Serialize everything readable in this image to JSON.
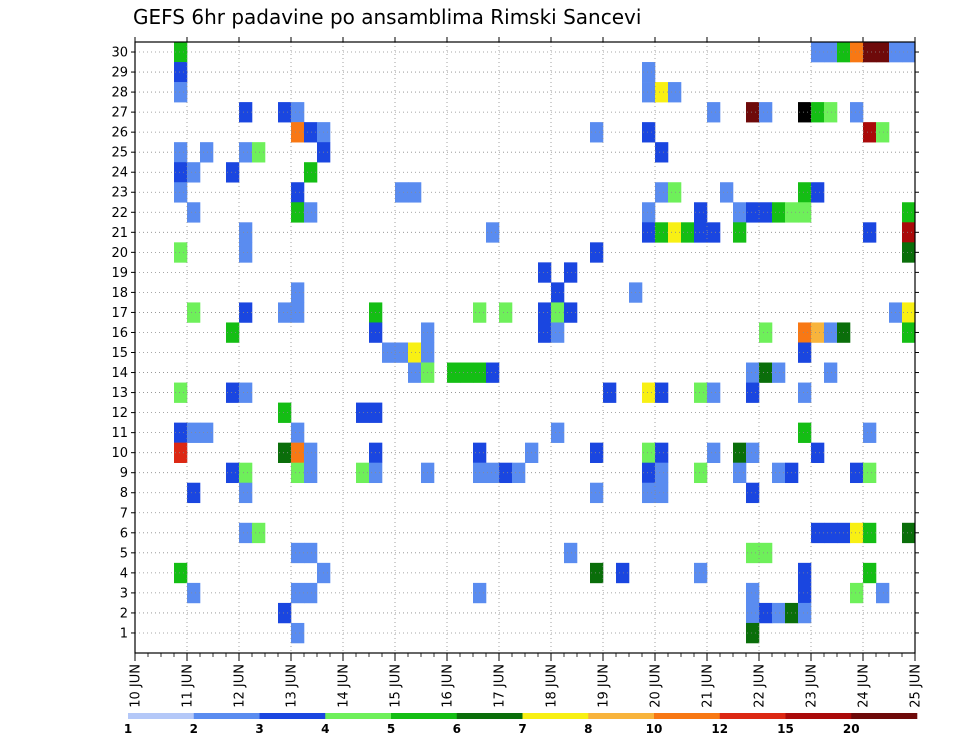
{
  "chart_data": {
    "type": "heatmap",
    "title": "GEFS 6hr padavine po ansamblima Rimski Sancevi",
    "x_tick_labels": [
      "10 JUN",
      "11 JUN",
      "12 JUN",
      "13 JUN",
      "14 JUN",
      "15 JUN",
      "16 JUN",
      "17 JUN",
      "18 JUN",
      "19 JUN",
      "20 JUN",
      "21 JUN",
      "22 JUN",
      "23 JUN",
      "24 JUN",
      "25 JUN"
    ],
    "y_tick_labels": [
      "1",
      "2",
      "3",
      "4",
      "5",
      "6",
      "7",
      "8",
      "9",
      "10",
      "11",
      "12",
      "13",
      "14",
      "15",
      "16",
      "17",
      "18",
      "19",
      "20",
      "21",
      "22",
      "23",
      "24",
      "25",
      "26",
      "27",
      "28",
      "29",
      "30"
    ],
    "time_steps_per_day": 4,
    "time_steps": 60,
    "members": 30,
    "grid": true,
    "colorbar": {
      "boundaries": [
        "1",
        "2",
        "3",
        "4",
        "5",
        "6",
        "7",
        "8",
        "10",
        "12",
        "15",
        "20"
      ],
      "colors": [
        "#b4c8f8",
        "#5a8cf0",
        "#1a46e0",
        "#6ef05a",
        "#14be14",
        "#0a6e0a",
        "#f8f014",
        "#f8b43c",
        "#f87814",
        "#dc2814",
        "#aa0a0a",
        "#6e0a0a"
      ]
    },
    "cells": [
      [
        3,
        30,
        4
      ],
      [
        52,
        30,
        1
      ],
      [
        53,
        30,
        1
      ],
      [
        54,
        30,
        4
      ],
      [
        55,
        30,
        8
      ],
      [
        56,
        30,
        11
      ],
      [
        57,
        30,
        11
      ],
      [
        58,
        30,
        1
      ],
      [
        59,
        30,
        1
      ],
      [
        3,
        29,
        2
      ],
      [
        39,
        29,
        1
      ],
      [
        3,
        28,
        1
      ],
      [
        39,
        28,
        1
      ],
      [
        40,
        28,
        6
      ],
      [
        41,
        28,
        1
      ],
      [
        8,
        27,
        2
      ],
      [
        11,
        27,
        2
      ],
      [
        12,
        27,
        1
      ],
      [
        44,
        27,
        1
      ],
      [
        47,
        27,
        11
      ],
      [
        48,
        27,
        1
      ],
      [
        51,
        27,
        12
      ],
      [
        52,
        27,
        4
      ],
      [
        53,
        27,
        3
      ],
      [
        55,
        27,
        1
      ],
      [
        12,
        26,
        8
      ],
      [
        13,
        26,
        2
      ],
      [
        14,
        26,
        1
      ],
      [
        35,
        26,
        1
      ],
      [
        39,
        26,
        2
      ],
      [
        56,
        26,
        10
      ],
      [
        57,
        26,
        3
      ],
      [
        3,
        25,
        1
      ],
      [
        5,
        25,
        1
      ],
      [
        8,
        25,
        1
      ],
      [
        9,
        25,
        3
      ],
      [
        14,
        25,
        2
      ],
      [
        40,
        25,
        2
      ],
      [
        3,
        24,
        2
      ],
      [
        4,
        24,
        1
      ],
      [
        7,
        24,
        2
      ],
      [
        13,
        24,
        4
      ],
      [
        3,
        23,
        1
      ],
      [
        12,
        23,
        2
      ],
      [
        20,
        23,
        1
      ],
      [
        21,
        23,
        1
      ],
      [
        40,
        23,
        1
      ],
      [
        41,
        23,
        3
      ],
      [
        45,
        23,
        1
      ],
      [
        51,
        23,
        4
      ],
      [
        52,
        23,
        2
      ],
      [
        4,
        22,
        1
      ],
      [
        12,
        22,
        4
      ],
      [
        13,
        22,
        1
      ],
      [
        39,
        22,
        1
      ],
      [
        43,
        22,
        2
      ],
      [
        46,
        22,
        1
      ],
      [
        47,
        22,
        2
      ],
      [
        48,
        22,
        2
      ],
      [
        49,
        22,
        4
      ],
      [
        50,
        22,
        3
      ],
      [
        51,
        22,
        3
      ],
      [
        59,
        22,
        4
      ],
      [
        8,
        21,
        1
      ],
      [
        27,
        21,
        1
      ],
      [
        39,
        21,
        2
      ],
      [
        40,
        21,
        4
      ],
      [
        41,
        21,
        6
      ],
      [
        42,
        21,
        4
      ],
      [
        43,
        21,
        2
      ],
      [
        44,
        21,
        2
      ],
      [
        46,
        21,
        4
      ],
      [
        56,
        21,
        2
      ],
      [
        59,
        21,
        10
      ],
      [
        3,
        20,
        3
      ],
      [
        8,
        20,
        1
      ],
      [
        35,
        20,
        2
      ],
      [
        59,
        20,
        5
      ],
      [
        31,
        19,
        2
      ],
      [
        33,
        19,
        2
      ],
      [
        12,
        18,
        1
      ],
      [
        32,
        18,
        2
      ],
      [
        38,
        18,
        1
      ],
      [
        4,
        17,
        3
      ],
      [
        8,
        17,
        2
      ],
      [
        11,
        17,
        1
      ],
      [
        12,
        17,
        1
      ],
      [
        18,
        17,
        4
      ],
      [
        26,
        17,
        3
      ],
      [
        28,
        17,
        3
      ],
      [
        31,
        17,
        2
      ],
      [
        32,
        17,
        3
      ],
      [
        33,
        17,
        2
      ],
      [
        58,
        17,
        1
      ],
      [
        59,
        17,
        6
      ],
      [
        7,
        16,
        4
      ],
      [
        18,
        16,
        2
      ],
      [
        22,
        16,
        1
      ],
      [
        31,
        16,
        2
      ],
      [
        32,
        16,
        1
      ],
      [
        48,
        16,
        3
      ],
      [
        51,
        16,
        8
      ],
      [
        52,
        16,
        7
      ],
      [
        53,
        16,
        1
      ],
      [
        54,
        16,
        5
      ],
      [
        59,
        16,
        4
      ],
      [
        19,
        15,
        1
      ],
      [
        20,
        15,
        1
      ],
      [
        21,
        15,
        6
      ],
      [
        22,
        15,
        1
      ],
      [
        51,
        15,
        2
      ],
      [
        21,
        14,
        1
      ],
      [
        22,
        14,
        3
      ],
      [
        24,
        14,
        4
      ],
      [
        25,
        14,
        4
      ],
      [
        26,
        14,
        4
      ],
      [
        27,
        14,
        2
      ],
      [
        47,
        14,
        1
      ],
      [
        48,
        14,
        5
      ],
      [
        49,
        14,
        1
      ],
      [
        53,
        14,
        1
      ],
      [
        3,
        13,
        3
      ],
      [
        7,
        13,
        2
      ],
      [
        8,
        13,
        1
      ],
      [
        36,
        13,
        2
      ],
      [
        39,
        13,
        6
      ],
      [
        40,
        13,
        2
      ],
      [
        43,
        13,
        3
      ],
      [
        44,
        13,
        1
      ],
      [
        47,
        13,
        2
      ],
      [
        51,
        13,
        1
      ],
      [
        11,
        12,
        4
      ],
      [
        17,
        12,
        2
      ],
      [
        18,
        12,
        2
      ],
      [
        3,
        11,
        2
      ],
      [
        4,
        11,
        1
      ],
      [
        5,
        11,
        1
      ],
      [
        12,
        11,
        1
      ],
      [
        32,
        11,
        1
      ],
      [
        51,
        11,
        4
      ],
      [
        56,
        11,
        1
      ],
      [
        3,
        10,
        9
      ],
      [
        11,
        10,
        5
      ],
      [
        12,
        10,
        8
      ],
      [
        13,
        10,
        1
      ],
      [
        18,
        10,
        2
      ],
      [
        26,
        10,
        2
      ],
      [
        30,
        10,
        1
      ],
      [
        35,
        10,
        2
      ],
      [
        39,
        10,
        3
      ],
      [
        40,
        10,
        2
      ],
      [
        44,
        10,
        1
      ],
      [
        46,
        10,
        5
      ],
      [
        47,
        10,
        1
      ],
      [
        52,
        10,
        2
      ],
      [
        7,
        9,
        2
      ],
      [
        8,
        9,
        3
      ],
      [
        12,
        9,
        3
      ],
      [
        13,
        9,
        1
      ],
      [
        17,
        9,
        3
      ],
      [
        18,
        9,
        1
      ],
      [
        22,
        9,
        1
      ],
      [
        26,
        9,
        1
      ],
      [
        27,
        9,
        1
      ],
      [
        28,
        9,
        2
      ],
      [
        29,
        9,
        1
      ],
      [
        39,
        9,
        2
      ],
      [
        40,
        9,
        1
      ],
      [
        43,
        9,
        3
      ],
      [
        46,
        9,
        1
      ],
      [
        49,
        9,
        1
      ],
      [
        50,
        9,
        2
      ],
      [
        55,
        9,
        2
      ],
      [
        56,
        9,
        3
      ],
      [
        4,
        8,
        2
      ],
      [
        8,
        8,
        1
      ],
      [
        35,
        8,
        1
      ],
      [
        39,
        8,
        1
      ],
      [
        40,
        8,
        1
      ],
      [
        47,
        8,
        2
      ],
      [
        8,
        6,
        1
      ],
      [
        9,
        6,
        3
      ],
      [
        52,
        6,
        2
      ],
      [
        53,
        6,
        2
      ],
      [
        54,
        6,
        2
      ],
      [
        55,
        6,
        6
      ],
      [
        56,
        6,
        4
      ],
      [
        59,
        6,
        5
      ],
      [
        12,
        5,
        1
      ],
      [
        13,
        5,
        1
      ],
      [
        33,
        5,
        1
      ],
      [
        47,
        5,
        3
      ],
      [
        48,
        5,
        3
      ],
      [
        3,
        4,
        4
      ],
      [
        14,
        4,
        1
      ],
      [
        35,
        4,
        5
      ],
      [
        37,
        4,
        2
      ],
      [
        43,
        4,
        1
      ],
      [
        51,
        4,
        2
      ],
      [
        56,
        4,
        4
      ],
      [
        4,
        3,
        1
      ],
      [
        12,
        3,
        1
      ],
      [
        13,
        3,
        1
      ],
      [
        26,
        3,
        1
      ],
      [
        47,
        3,
        1
      ],
      [
        51,
        3,
        2
      ],
      [
        55,
        3,
        3
      ],
      [
        57,
        3,
        1
      ],
      [
        11,
        2,
        2
      ],
      [
        47,
        2,
        1
      ],
      [
        48,
        2,
        2
      ],
      [
        49,
        2,
        1
      ],
      [
        50,
        2,
        5
      ],
      [
        51,
        2,
        1
      ],
      [
        12,
        1,
        1
      ],
      [
        47,
        1,
        5
      ]
    ]
  }
}
